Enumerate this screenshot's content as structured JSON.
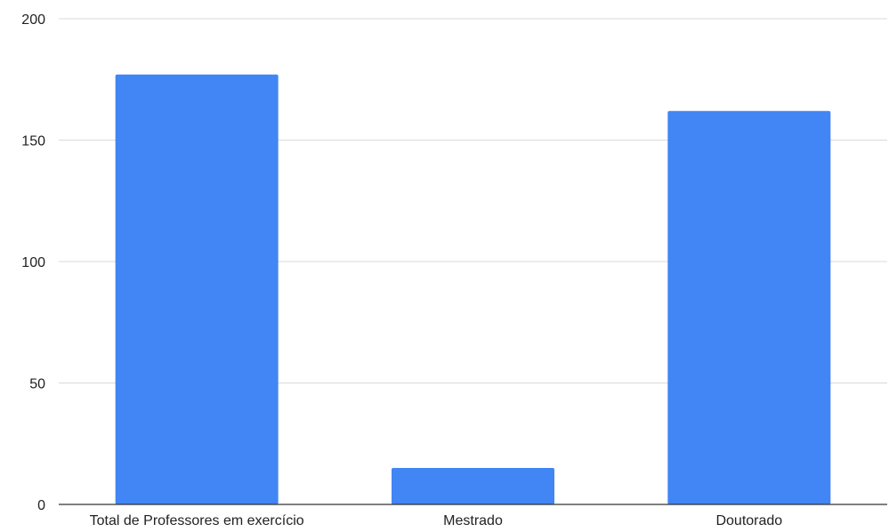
{
  "chart_data": {
    "type": "bar",
    "categories": [
      "Total de Professores em exercício",
      "Mestrado",
      "Doutorado"
    ],
    "values": [
      177,
      15,
      162
    ],
    "ylim": [
      0,
      200
    ],
    "yticks": [
      0,
      50,
      100,
      150,
      200
    ],
    "ytick_labels": [
      "0",
      "50",
      "100",
      "150",
      "200"
    ],
    "grid": true,
    "legend": "none",
    "bar_color": "#4285f4"
  }
}
